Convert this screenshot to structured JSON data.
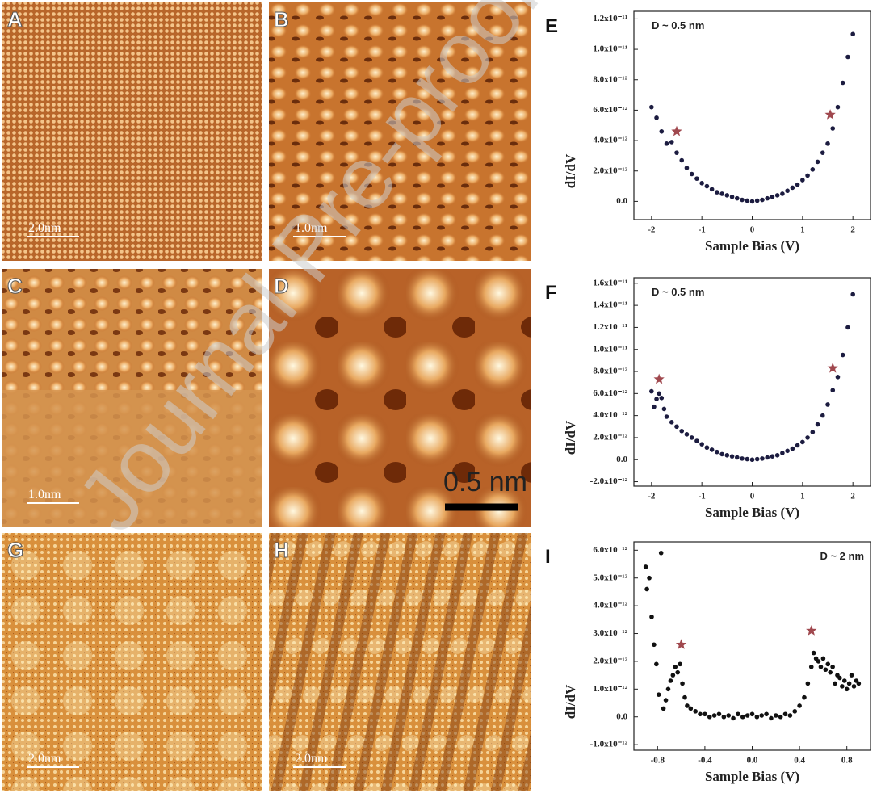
{
  "watermark": "Journal Pre-proof",
  "panels": [
    {
      "label": "A",
      "scale": "2.0nm"
    },
    {
      "label": "B",
      "scale": "1.0nm"
    },
    {
      "label": "C",
      "scale": "1.0nm"
    },
    {
      "label": "D",
      "scale": "0.5 nm"
    },
    {
      "label": "G",
      "scale": "2.0nm"
    },
    {
      "label": "H",
      "scale": "2.0nm"
    }
  ],
  "chart_data": [
    {
      "type": "scatter",
      "label": "E",
      "annotation": "D ~ 0.5 nm",
      "x_label": "Sample Bias (V)",
      "y_label": "dI/dV",
      "color": "#1c1c40",
      "xlim": [
        -2.35,
        2.35
      ],
      "xticks": [
        -2,
        -1,
        0,
        1,
        2
      ],
      "ylim": [
        -1.2e-12,
        1.25e-11
      ],
      "yticks": [
        {
          "value": 0,
          "label": "0.0"
        },
        {
          "value": 2e-12,
          "label": "2.0x10⁻¹²"
        },
        {
          "value": 4e-12,
          "label": "4.0x10⁻¹²"
        },
        {
          "value": 6e-12,
          "label": "6.0x10⁻¹²"
        },
        {
          "value": 8e-12,
          "label": "8.0x10⁻¹²"
        },
        {
          "value": 1e-11,
          "label": "1.0x10⁻¹¹"
        },
        {
          "value": 1.2e-11,
          "label": "1.2x10⁻¹¹"
        }
      ],
      "x": [
        -2.0,
        -1.9,
        -1.8,
        -1.7,
        -1.6,
        -1.5,
        -1.4,
        -1.3,
        -1.2,
        -1.1,
        -1.0,
        -0.9,
        -0.8,
        -0.7,
        -0.6,
        -0.5,
        -0.4,
        -0.3,
        -0.2,
        -0.1,
        0.0,
        0.1,
        0.2,
        0.3,
        0.4,
        0.5,
        0.6,
        0.7,
        0.8,
        0.9,
        1.0,
        1.1,
        1.2,
        1.3,
        1.4,
        1.5,
        1.6,
        1.7,
        1.8,
        1.9,
        2.0
      ],
      "values": [
        6.2e-12,
        5.5e-12,
        4.6e-12,
        3.8e-12,
        3.9e-12,
        3.2e-12,
        2.7e-12,
        2.2e-12,
        1.8e-12,
        1.5e-12,
        1.2e-12,
        1e-12,
        8e-13,
        6e-13,
        5e-13,
        4e-13,
        3e-13,
        2e-13,
        1e-13,
        5e-14,
        0,
        5e-14,
        1e-13,
        2e-13,
        3e-13,
        4e-13,
        5e-13,
        7e-13,
        9e-13,
        1.1e-12,
        1.4e-12,
        1.7e-12,
        2.1e-12,
        2.6e-12,
        3.2e-12,
        3.8e-12,
        4.8e-12,
        6.2e-12,
        7.8e-12,
        9.5e-12,
        1.1e-11
      ],
      "markers": [
        {
          "x": -1.5,
          "y": 4.6e-12
        },
        {
          "x": 1.55,
          "y": 5.7e-12
        }
      ]
    },
    {
      "type": "scatter",
      "label": "F",
      "annotation": "D ~ 0.5 nm",
      "x_label": "Sample Bias (V)",
      "y_label": "dI/dV",
      "color": "#1c1c40",
      "xlim": [
        -2.35,
        2.35
      ],
      "xticks": [
        -2,
        -1,
        0,
        1,
        2
      ],
      "ylim": [
        -2.4e-12,
        1.65e-11
      ],
      "yticks": [
        {
          "value": -2e-12,
          "label": "-2.0x10⁻¹²"
        },
        {
          "value": 0,
          "label": "0.0"
        },
        {
          "value": 2e-12,
          "label": "2.0x10⁻¹²"
        },
        {
          "value": 4e-12,
          "label": "4.0x10⁻¹²"
        },
        {
          "value": 6e-12,
          "label": "6.0x10⁻¹²"
        },
        {
          "value": 8e-12,
          "label": "8.0x10⁻¹²"
        },
        {
          "value": 1e-11,
          "label": "1.0x10⁻¹¹"
        },
        {
          "value": 1.2e-11,
          "label": "1.2x10⁻¹¹"
        },
        {
          "value": 1.4e-11,
          "label": "1.4x10⁻¹¹"
        },
        {
          "value": 1.6e-11,
          "label": "1.6x10⁻¹¹"
        }
      ],
      "x": [
        -2.0,
        -1.95,
        -1.9,
        -1.85,
        -1.8,
        -1.75,
        -1.7,
        -1.6,
        -1.5,
        -1.4,
        -1.3,
        -1.2,
        -1.1,
        -1.0,
        -0.9,
        -0.8,
        -0.7,
        -0.6,
        -0.5,
        -0.4,
        -0.3,
        -0.2,
        -0.1,
        0.0,
        0.1,
        0.2,
        0.3,
        0.4,
        0.5,
        0.6,
        0.7,
        0.8,
        0.9,
        1.0,
        1.1,
        1.2,
        1.3,
        1.4,
        1.5,
        1.6,
        1.7,
        1.8,
        1.9,
        2.0
      ],
      "values": [
        6.2e-12,
        4.8e-12,
        5.5e-12,
        6e-12,
        5.6e-12,
        4.6e-12,
        3.9e-12,
        3.4e-12,
        3e-12,
        2.6e-12,
        2.3e-12,
        2e-12,
        1.7e-12,
        1.4e-12,
        1.1e-12,
        9e-13,
        7e-13,
        5e-13,
        4e-13,
        3e-13,
        2e-13,
        1e-13,
        5e-14,
        0,
        5e-14,
        1e-13,
        2e-13,
        3e-13,
        4e-13,
        6e-13,
        8e-13,
        1e-12,
        1.3e-12,
        1.6e-12,
        2e-12,
        2.5e-12,
        3.2e-12,
        4e-12,
        5e-12,
        6.3e-12,
        7.5e-12,
        9.5e-12,
        1.2e-11,
        1.5e-11
      ],
      "markers": [
        {
          "x": -1.85,
          "y": 7.3e-12
        },
        {
          "x": 1.6,
          "y": 8.3e-12
        }
      ]
    },
    {
      "type": "scatter",
      "label": "I",
      "annotation": "D ~ 2 nm",
      "x_label": "Sample Bias (V)",
      "y_label": "dI/dV",
      "color": "#111111",
      "xlim": [
        -1.0,
        1.0
      ],
      "xticks": [
        -0.8,
        -0.4,
        {
          "value": 0,
          "label": "0.0"
        },
        0.4,
        0.8
      ],
      "ylim": [
        -1.2e-12,
        6.3e-12
      ],
      "yticks": [
        {
          "value": -1e-12,
          "label": "-1.0x10⁻¹²"
        },
        {
          "value": 0,
          "label": "0.0"
        },
        {
          "value": 1e-12,
          "label": "1.0x10⁻¹²"
        },
        {
          "value": 2e-12,
          "label": "2.0x10⁻¹²"
        },
        {
          "value": 3e-12,
          "label": "3.0x10⁻¹²"
        },
        {
          "value": 4e-12,
          "label": "4.0x10⁻¹²"
        },
        {
          "value": 5e-12,
          "label": "5.0x10⁻¹²"
        },
        {
          "value": 6e-12,
          "label": "6.0x10⁻¹²"
        }
      ],
      "x": [
        -0.9,
        -0.89,
        -0.87,
        -0.85,
        -0.83,
        -0.81,
        -0.79,
        -0.77,
        -0.75,
        -0.73,
        -0.71,
        -0.69,
        -0.67,
        -0.65,
        -0.63,
        -0.61,
        -0.59,
        -0.57,
        -0.55,
        -0.52,
        -0.48,
        -0.44,
        -0.4,
        -0.36,
        -0.32,
        -0.28,
        -0.24,
        -0.2,
        -0.16,
        -0.12,
        -0.08,
        -0.04,
        0.0,
        0.04,
        0.08,
        0.12,
        0.16,
        0.2,
        0.24,
        0.28,
        0.32,
        0.36,
        0.4,
        0.44,
        0.47,
        0.5,
        0.52,
        0.54,
        0.56,
        0.58,
        0.6,
        0.62,
        0.64,
        0.66,
        0.68,
        0.7,
        0.72,
        0.74,
        0.76,
        0.78,
        0.8,
        0.82,
        0.84,
        0.86,
        0.88,
        0.9
      ],
      "values": [
        5.4e-12,
        4.6e-12,
        5e-12,
        3.6e-12,
        2.6e-12,
        1.9e-12,
        8e-13,
        5.9e-12,
        3e-13,
        6e-13,
        1e-12,
        1.3e-12,
        1.5e-12,
        1.8e-12,
        1.6e-12,
        1.9e-12,
        1.2e-12,
        7e-13,
        4e-13,
        3e-13,
        2e-13,
        1e-13,
        1e-13,
        0,
        5e-14,
        1e-13,
        0,
        5e-14,
        -5e-14,
        1e-13,
        0,
        5e-14,
        1e-13,
        0,
        5e-14,
        1e-13,
        -5e-14,
        5e-14,
        0,
        1e-13,
        5e-14,
        2e-13,
        4e-13,
        7e-13,
        1.2e-12,
        1.8e-12,
        2.3e-12,
        2.1e-12,
        2e-12,
        1.8e-12,
        2.1e-12,
        1.7e-12,
        1.9e-12,
        1.6e-12,
        1.8e-12,
        1.2e-12,
        1.5e-12,
        1.4e-12,
        1.1e-12,
        1.3e-12,
        1e-12,
        1.2e-12,
        1.5e-12,
        1.1e-12,
        1.3e-12,
        1.2e-12
      ],
      "markers": [
        {
          "x": -0.6,
          "y": 2.6e-12
        },
        {
          "x": 0.5,
          "y": 3.1e-12
        }
      ]
    }
  ]
}
